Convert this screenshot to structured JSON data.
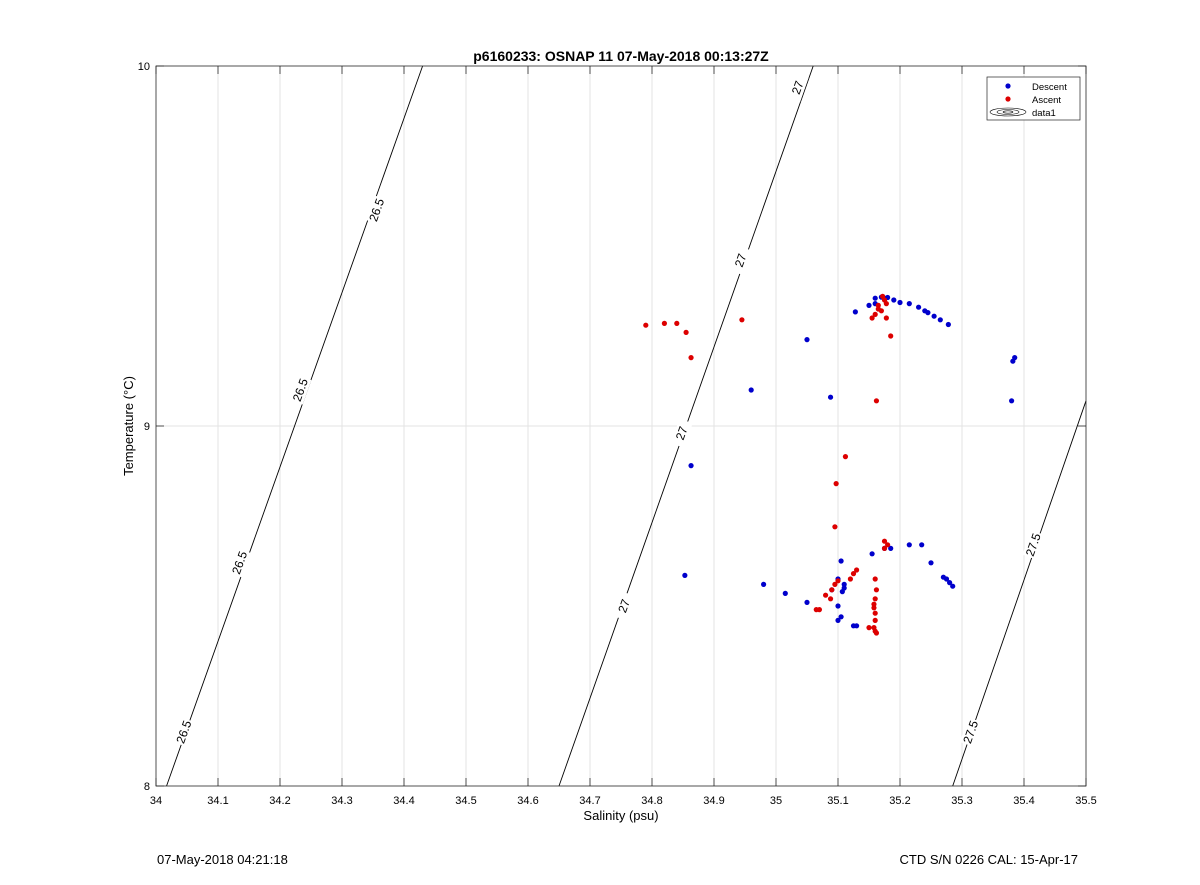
{
  "footer": {
    "left": "07-May-2018 04:21:18",
    "right": "CTD S/N 0226  CAL: 15-Apr-17"
  },
  "chart_data": {
    "type": "scatter",
    "title": "p6160233: OSNAP 11 07-May-2018 00:13:27Z",
    "xlabel": "Salinity (psu)",
    "ylabel": "Temperature (°C)",
    "xlim": [
      34,
      35.5
    ],
    "ylim": [
      8,
      10
    ],
    "xticks": [
      "34",
      "34.1",
      "34.2",
      "34.3",
      "34.4",
      "34.5",
      "34.6",
      "34.7",
      "34.8",
      "34.9",
      "35",
      "35.1",
      "35.2",
      "35.3",
      "35.4",
      "35.5"
    ],
    "yticks": [
      "8",
      "9",
      "10"
    ],
    "grid": true,
    "legend": {
      "placement": "top-right",
      "entries": [
        "Descent",
        "Ascent",
        "data1"
      ]
    },
    "colors": {
      "descent": "#0000cc",
      "ascent": "#dd0000"
    },
    "contours": [
      {
        "label": "26.5",
        "points": [
          [
            34.017,
            8.0
          ],
          [
            34.43,
            10.0
          ]
        ],
        "label_at": [
          [
            34.045,
            8.15
          ],
          [
            34.135,
            8.62
          ],
          [
            34.233,
            9.1
          ],
          [
            34.356,
            9.6
          ]
        ]
      },
      {
        "label": "27",
        "points": [
          [
            34.65,
            8.0
          ],
          [
            35.06,
            10.0
          ]
        ],
        "label_at": [
          [
            34.755,
            8.5
          ],
          [
            34.848,
            8.98
          ],
          [
            34.943,
            9.46
          ],
          [
            35.035,
            9.94
          ]
        ]
      },
      {
        "label": "27.5",
        "points": [
          [
            35.285,
            8.0
          ],
          [
            35.5,
            9.07
          ]
        ],
        "label_at": [
          [
            35.314,
            8.15
          ],
          [
            35.415,
            8.67
          ]
        ]
      }
    ],
    "series": [
      {
        "name": "Descent",
        "x": [
          35.16,
          35.17,
          35.175,
          35.18,
          35.19,
          35.15,
          35.16,
          35.128,
          35.2,
          35.215,
          35.23,
          35.24,
          35.245,
          35.255,
          35.265,
          35.278,
          35.05,
          34.96,
          35.088,
          35.38,
          35.385,
          35.382,
          34.863,
          34.853,
          34.98,
          35.015,
          35.05,
          35.09,
          35.1,
          35.105,
          35.11,
          35.1,
          35.105,
          35.11,
          35.1,
          35.107,
          35.125,
          35.13,
          35.185,
          35.155,
          35.175,
          35.215,
          35.235,
          35.25,
          35.27,
          35.275,
          35.28,
          35.285
        ],
        "y": [
          9.355,
          9.358,
          9.355,
          9.357,
          9.35,
          9.335,
          9.34,
          9.317,
          9.343,
          9.34,
          9.33,
          9.32,
          9.315,
          9.305,
          9.295,
          9.282,
          9.24,
          9.1,
          9.08,
          9.07,
          9.19,
          9.18,
          8.89,
          8.585,
          8.56,
          8.535,
          8.51,
          8.545,
          8.575,
          8.625,
          8.56,
          8.5,
          8.47,
          8.55,
          8.46,
          8.54,
          8.445,
          8.445,
          8.66,
          8.645,
          8.66,
          8.67,
          8.67,
          8.62,
          8.58,
          8.575,
          8.565,
          8.555
        ]
      },
      {
        "name": "Ascent",
        "x": [
          34.79,
          34.82,
          34.84,
          34.855,
          34.863,
          34.945,
          35.172,
          35.175,
          35.178,
          35.165,
          35.17,
          35.16,
          35.165,
          35.155,
          35.178,
          35.185,
          35.162,
          35.112,
          35.097,
          35.095,
          35.175,
          35.18,
          35.175,
          35.13,
          35.125,
          35.12,
          35.1,
          35.095,
          35.09,
          35.088,
          35.08,
          35.07,
          35.065,
          35.16,
          35.162,
          35.16,
          35.158,
          35.158,
          35.16,
          35.16,
          35.158,
          35.16,
          35.162,
          35.15
        ],
        "y": [
          9.28,
          9.285,
          9.285,
          9.26,
          9.19,
          9.295,
          9.36,
          9.35,
          9.34,
          9.335,
          9.32,
          9.31,
          9.325,
          9.3,
          9.3,
          9.25,
          9.07,
          8.915,
          8.84,
          8.72,
          8.68,
          8.67,
          8.66,
          8.6,
          8.59,
          8.575,
          8.57,
          8.56,
          8.545,
          8.52,
          8.53,
          8.49,
          8.49,
          8.575,
          8.545,
          8.52,
          8.505,
          8.495,
          8.48,
          8.46,
          8.44,
          8.43,
          8.425,
          8.44
        ]
      }
    ]
  }
}
